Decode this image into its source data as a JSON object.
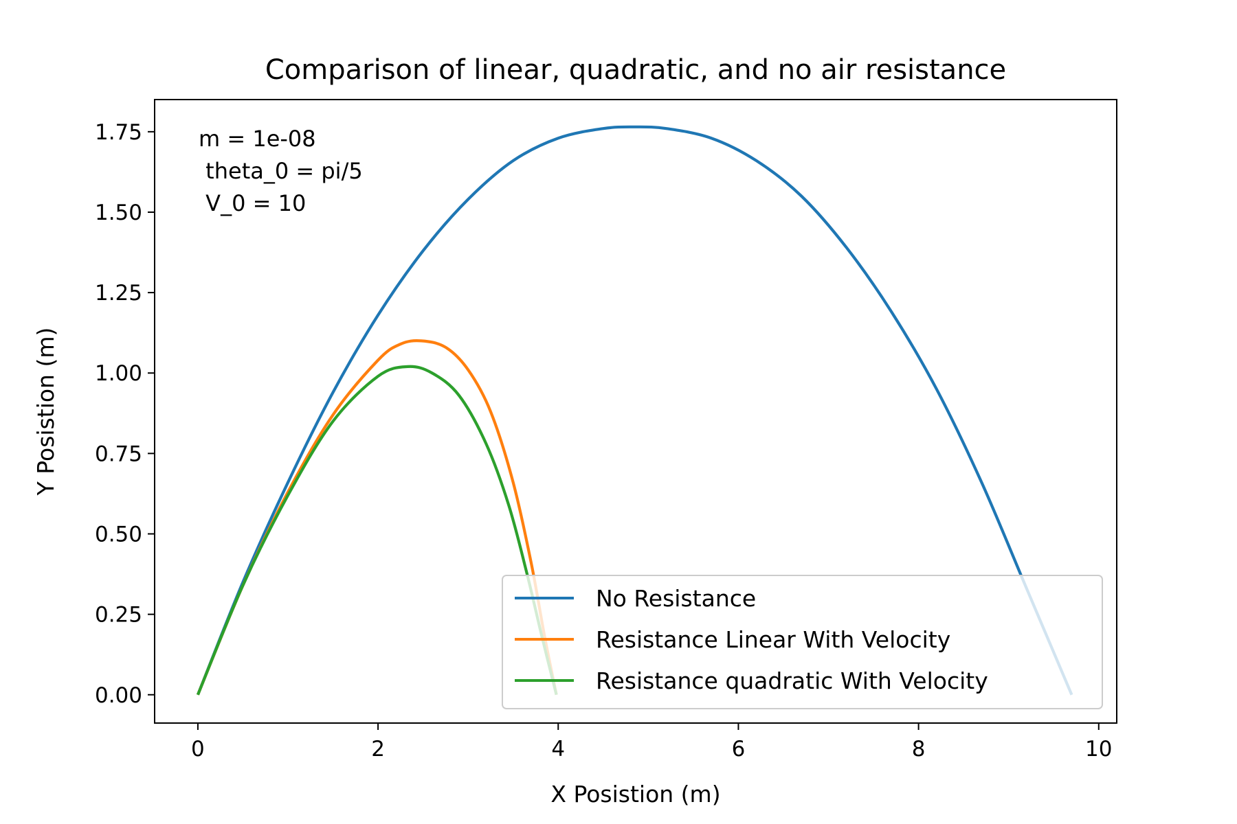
{
  "chart_data": {
    "type": "line",
    "title": "Comparison of linear, quadratic, and no air resistance",
    "xlabel": "X Posistion (m)",
    "ylabel": "Y Posistion (m)",
    "xlim": [
      -0.48,
      10.2
    ],
    "ylim": [
      -0.088,
      1.85
    ],
    "xticks": [
      0,
      2,
      4,
      6,
      8,
      10
    ],
    "xtick_labels": [
      "0",
      "2",
      "4",
      "6",
      "8",
      "10"
    ],
    "yticks": [
      0,
      0.25,
      0.5,
      0.75,
      1.0,
      1.25,
      1.5,
      1.75
    ],
    "ytick_labels": [
      "0.00",
      "0.25",
      "0.50",
      "0.75",
      "1.00",
      "1.25",
      "1.50",
      "1.75"
    ],
    "grid": false,
    "legend_position": "lower-right",
    "annotation": [
      "m = 1e-08",
      " theta_0 = pi/5",
      " V_0 = 10"
    ],
    "series": [
      {
        "name": "No Resistance",
        "color": "#1f77b4",
        "x": [
          0,
          0.5,
          1,
          1.5,
          2,
          2.5,
          3,
          3.5,
          4,
          4.5,
          4.85,
          5.2,
          5.7,
          6.2,
          6.7,
          7.2,
          7.7,
          8.2,
          8.7,
          9.2,
          9.7
        ],
        "y": [
          0,
          0.35,
          0.66,
          0.94,
          1.18,
          1.38,
          1.54,
          1.66,
          1.73,
          1.76,
          1.765,
          1.76,
          1.73,
          1.66,
          1.55,
          1.39,
          1.19,
          0.95,
          0.66,
          0.33,
          0
        ]
      },
      {
        "name": "Resistance Linear With Velocity",
        "color": "#ff7f0e",
        "x": [
          0,
          0.5,
          1,
          1.5,
          2,
          2.25,
          2.48,
          2.75,
          3,
          3.25,
          3.5,
          3.7,
          3.85,
          3.98
        ],
        "y": [
          0,
          0.34,
          0.63,
          0.87,
          1.04,
          1.09,
          1.1,
          1.08,
          1.01,
          0.88,
          0.66,
          0.41,
          0.18,
          0
        ]
      },
      {
        "name": "Resistance quadratic With Velocity",
        "color": "#2ca02c",
        "x": [
          0,
          0.5,
          1,
          1.5,
          2,
          2.33,
          2.6,
          2.9,
          3.2,
          3.45,
          3.65,
          3.82,
          3.98
        ],
        "y": [
          0,
          0.34,
          0.62,
          0.85,
          0.99,
          1.02,
          1.0,
          0.93,
          0.78,
          0.59,
          0.38,
          0.18,
          0
        ]
      }
    ]
  }
}
